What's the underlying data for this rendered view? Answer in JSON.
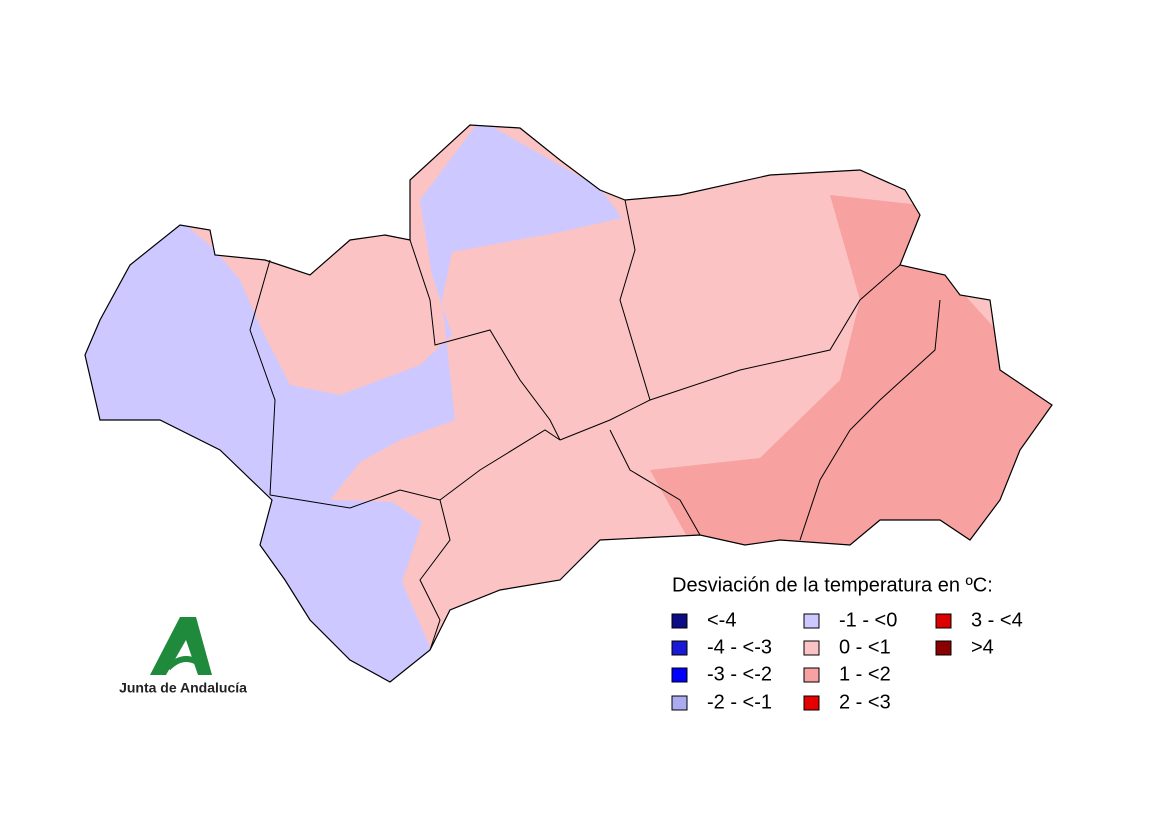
{
  "legend": {
    "title": "Desviación de la temperatura en ºC:",
    "items": [
      {
        "label": "<-4",
        "color": "#0c0c86"
      },
      {
        "label": "-4 - <-3",
        "color": "#1a1ad6"
      },
      {
        "label": "-3 - <-2",
        "color": "#0000ff"
      },
      {
        "label": "-2 - <-1",
        "color": "#ababf0"
      },
      {
        "label": "-1 - <0",
        "color": "#cdc8ff"
      },
      {
        "label": "0 - <1",
        "color": "#fbc3c3"
      },
      {
        "label": "1 - <2",
        "color": "#f7a1a1"
      },
      {
        "label": "2 - <3",
        "color": "#e60000"
      },
      {
        "label": "3 - <4",
        "color": "#dc0000"
      },
      {
        "label": ">4",
        "color": "#8b0000"
      }
    ]
  },
  "logo": {
    "text": "Junta de Andalucía"
  }
}
